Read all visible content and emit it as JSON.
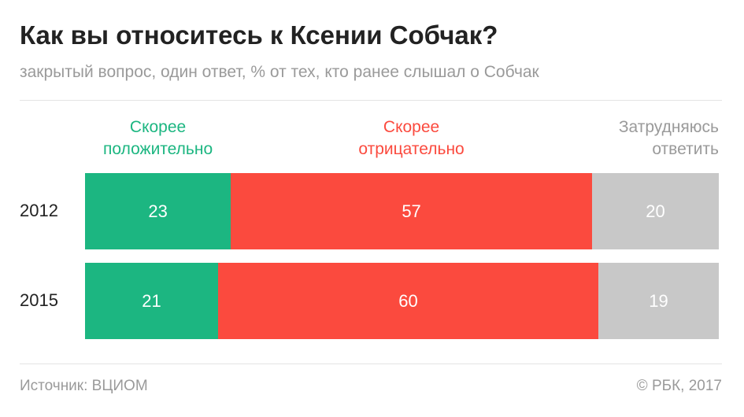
{
  "title": "Как вы относитесь к Ксении Собчак?",
  "subtitle": "закрытый вопрос, один ответ, % от тех, кто ранее слышал о Собчак",
  "footer": {
    "source": "Источник: ВЦИОМ",
    "copyright": "© РБК, 2017"
  },
  "colors": {
    "positive": "#1cb681",
    "negative": "#fb4a3e",
    "unsure": "#c8c8c8",
    "unsure_text": "#9a9a9a"
  },
  "chart_data": {
    "type": "bar",
    "orientation": "horizontal",
    "stacked": true,
    "categories": [
      "2012",
      "2015"
    ],
    "series": [
      {
        "name": "Скорее положительно",
        "legend_lines": [
          "Скорее",
          "положительно"
        ],
        "values": [
          23,
          21
        ]
      },
      {
        "name": "Скорее отрицательно",
        "legend_lines": [
          "Скорее",
          "отрицательно"
        ],
        "values": [
          57,
          60
        ]
      },
      {
        "name": "Затрудняюсь ответить",
        "legend_lines": [
          "Затрудняюсь",
          "ответить"
        ],
        "values": [
          20,
          19
        ]
      }
    ],
    "xlim": [
      0,
      100
    ],
    "grid": false,
    "legend_position": "top"
  }
}
